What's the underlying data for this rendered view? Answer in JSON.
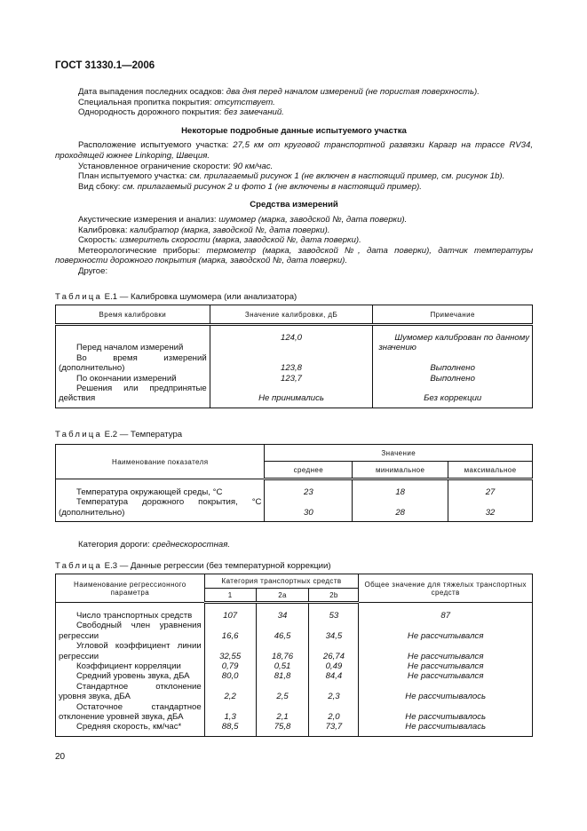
{
  "header": {
    "doc_code": "ГОСТ 31330.1—2006"
  },
  "intro": [
    {
      "label": "Дата выпадения последних осадков: ",
      "value": "два дня перед началом измерений (не пористая поверхность)."
    },
    {
      "label": "Специальная пропитка покрытия: ",
      "value": "отсутствует."
    },
    {
      "label": "Однородность дорожного покрытия: ",
      "value": "без замечаний."
    }
  ],
  "section1": {
    "heading": "Некоторые подробные данные испытуемого участка",
    "items": [
      {
        "label": "Расположение испытуемого участка: ",
        "value": "27,5 км от круговой транспортной развязки Карагр на трассе RV34, проходящей южнее Linkoping, Швеция."
      },
      {
        "label": "Установленное ограничение скорости: ",
        "value": "90 км/час."
      },
      {
        "label": "План испытуемого участка: ",
        "value": "см. прилагаемый рисунок 1 (не включен в настоящий пример, см. рисунок 1b)."
      },
      {
        "label": "Вид сбоку: ",
        "value": "см. прилагаемый рисунок 2 и фото 1 (не включены в настоящий пример)."
      }
    ]
  },
  "section2": {
    "heading": "Средства измерений",
    "items": [
      {
        "label": "Акустические измерения и анализ: ",
        "value": "шумомер (марка, заводской №, дата поверки)."
      },
      {
        "label": "Калибровка: ",
        "value": "калибратор (марка, заводской №, дата поверки)."
      },
      {
        "label": "Скорость: ",
        "value": "измеритель скорости (марка, заводской №, дата поверки)."
      },
      {
        "label": "Метеорологические приборы: ",
        "value": "термометр (марка, заводской №, дата поверки), датчик температуры поверхности дорожного покрытия (марка, заводской №, дата поверки)."
      },
      {
        "label": "Другое:",
        "value": ""
      }
    ]
  },
  "table1": {
    "caption_word": "Таблица",
    "caption": " Е.1 — Калибровка шумомера (или анализатора)",
    "headers": [
      "Время калибровки",
      "Значение калибровки, дБ",
      "Примечание"
    ],
    "rows": [
      [
        "Перед началом измерений",
        "124,0",
        "Шумомер калиброван по данному значению"
      ],
      [
        "Во время измерений (дополнительно)",
        "123,8",
        "Выполнено"
      ],
      [
        "По окончании измерений",
        "123,7",
        "Выполнено"
      ],
      [
        "Решения или предпринятые действия",
        "Не принимались",
        "Без коррекции"
      ]
    ]
  },
  "table2": {
    "caption_word": "Таблица",
    "caption": " Е.2 — Температура",
    "header_name": "Наименование показателя",
    "header_group": "Значение",
    "subheaders": [
      "среднее",
      "минимальное",
      "максимальное"
    ],
    "rows": [
      [
        "Температура окружающей среды, °С",
        "23",
        "18",
        "27"
      ],
      [
        "Температура дорожного покрытия, °С (дополнительно)",
        "30",
        "28",
        "32"
      ]
    ]
  },
  "road_category": {
    "label": "Категория дороги: ",
    "value": "среднескоростная."
  },
  "table3": {
    "caption_word": "Таблица",
    "caption": " Е.3 — Данные регрессии (без температурной коррекции)",
    "header_name": "Наименование регрессионного параметра",
    "header_group": "Категория транспортных средств",
    "subheaders": [
      "1",
      "2a",
      "2b"
    ],
    "header_total": "Общее значение для тяжелых транспортных средств",
    "rows": [
      [
        "Число транспортных средств",
        "107",
        "34",
        "53",
        "87"
      ],
      [
        "Свободный член уравнения регрессии",
        "16,6",
        "46,5",
        "34,5",
        "Не рассчитывался"
      ],
      [
        "Угловой коэффициент линии регрессии",
        "32,55",
        "18,76",
        "26,74",
        "Не рассчитывался"
      ],
      [
        "Коэффициент корреляции",
        "0,79",
        "0,51",
        "0,49",
        "Не рассчитывался"
      ],
      [
        "Средний уровень звука, дБА",
        "80,0",
        "81,8",
        "84,4",
        "Не рассчитывался"
      ],
      [
        "Стандартное отклонение уровня звука, дБА",
        "2,2",
        "2,5",
        "2,3",
        "Не рассчитывалось"
      ],
      [
        "Остаточное стандартное отклонение уровней звука, дБА",
        "1,3",
        "2,1",
        "2,0",
        "Не рассчитывалось"
      ],
      [
        "Средняя скорость, км/час*",
        "88,5",
        "75,8",
        "73,7",
        "Не рассчитывалась"
      ]
    ]
  },
  "footer": {
    "page_number": "20"
  }
}
